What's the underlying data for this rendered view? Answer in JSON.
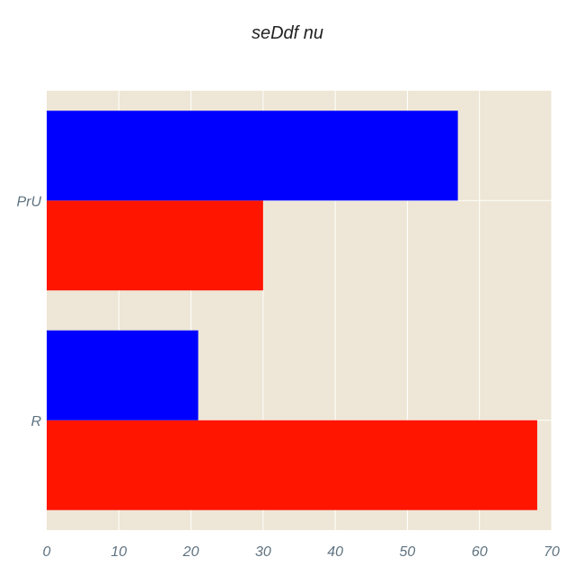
{
  "chart_data": {
    "type": "bar",
    "orientation": "horizontal",
    "title": "seDdf nu",
    "xlabel": "",
    "ylabel": "",
    "categories": [
      "R",
      "PrU"
    ],
    "series": [
      {
        "values": [
          68,
          30
        ],
        "color": "#ff1500"
      },
      {
        "values": [
          21,
          57
        ],
        "color": "#0000ff"
      }
    ],
    "xlim": [
      0,
      70
    ],
    "xticks": [
      0,
      10,
      20,
      30,
      40,
      50,
      60,
      70
    ],
    "grid": true,
    "legend": "none",
    "colors": {
      "plot_background": "#eee6d6",
      "gridline": "#ffffff",
      "tick_label": "#5f7381"
    }
  }
}
